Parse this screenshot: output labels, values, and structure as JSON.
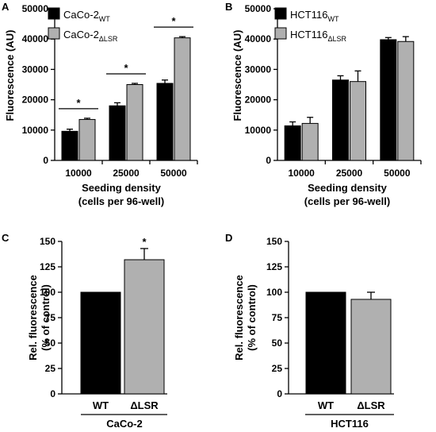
{
  "chart_data": [
    {
      "panel": "A",
      "type": "bar",
      "categories": [
        "10000",
        "25000",
        "50000"
      ],
      "series": [
        {
          "name": "CaCo-2",
          "name_sub": "WT",
          "color": "#000000",
          "values": [
            9600,
            18000,
            25400
          ],
          "errors": [
            700,
            1000,
            1100
          ]
        },
        {
          "name": "CaCo-2",
          "name_sub": "ΔLSR",
          "color": "#b0b0b0",
          "values": [
            13500,
            25000,
            40400
          ],
          "errors": [
            400,
            400,
            400
          ]
        }
      ],
      "significance": [
        "*",
        "*",
        "*"
      ],
      "ylabel": "Fluorescence (AU)",
      "xlabel": [
        "Seeding density",
        "(cells per 96-well)"
      ],
      "ylim": [
        0,
        50000
      ],
      "yticks": [
        "0",
        "10000",
        "20000",
        "30000",
        "40000",
        "50000"
      ],
      "legend": "top-left"
    },
    {
      "panel": "B",
      "type": "bar",
      "categories": [
        "10000",
        "25000",
        "50000"
      ],
      "series": [
        {
          "name": "HCT116",
          "name_sub": "WT",
          "color": "#000000",
          "values": [
            11400,
            26500,
            39800
          ],
          "errors": [
            1300,
            1400,
            700
          ]
        },
        {
          "name": "HCT116",
          "name_sub": "ΔLSR",
          "color": "#b0b0b0",
          "values": [
            12200,
            26000,
            39200
          ],
          "errors": [
            2000,
            3500,
            1600
          ]
        }
      ],
      "ylabel": "Fluorescence (AU)",
      "xlabel": [
        "Seeding density",
        "(cells per 96-well)"
      ],
      "ylim": [
        0,
        50000
      ],
      "yticks": [
        "0",
        "10000",
        "20000",
        "30000",
        "40000",
        "50000"
      ],
      "legend": "top-left"
    },
    {
      "panel": "C",
      "type": "bar",
      "categories": [
        "WT",
        "ΔLSR"
      ],
      "colors": [
        "#000000",
        "#b0b0b0"
      ],
      "values": [
        100,
        132
      ],
      "errors": [
        0,
        11
      ],
      "significance": [
        "",
        "*"
      ],
      "ylabel": [
        "Rel. fluorescence",
        "(% of control)"
      ],
      "group_label": "CaCo-2",
      "ylim": [
        0,
        150
      ],
      "yticks": [
        "0",
        "25",
        "50",
        "75",
        "100",
        "125",
        "150"
      ]
    },
    {
      "panel": "D",
      "type": "bar",
      "categories": [
        "WT",
        "ΔLSR"
      ],
      "colors": [
        "#000000",
        "#b0b0b0"
      ],
      "values": [
        100,
        93
      ],
      "errors": [
        0,
        7
      ],
      "ylabel": [
        "Rel. fluorescence",
        "(% of control)"
      ],
      "group_label": "HCT116",
      "ylim": [
        0,
        150
      ],
      "yticks": [
        "0",
        "25",
        "50",
        "75",
        "100",
        "125",
        "150"
      ]
    }
  ]
}
